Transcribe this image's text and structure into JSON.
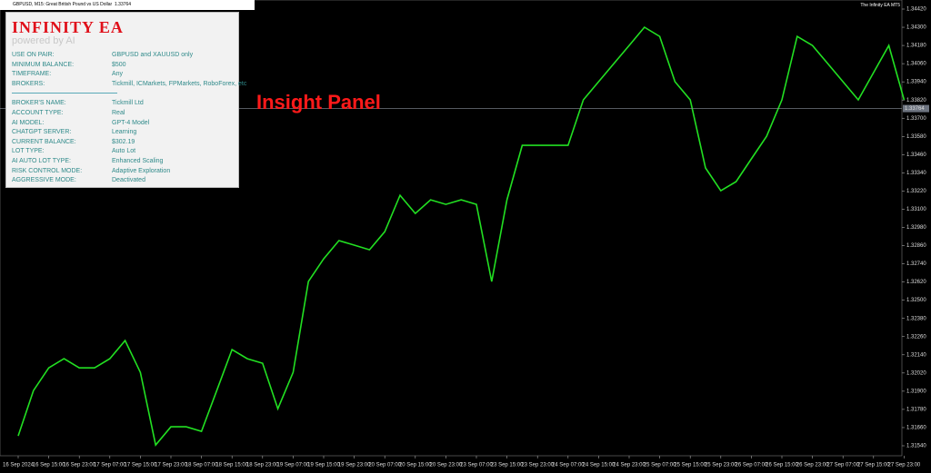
{
  "header": {
    "symbol": "GBPUSD, M15:  Great British Pound vs US Dollar",
    "ea_name": "The Infinity EA MT5"
  },
  "annotation": "Insight Panel",
  "panel": {
    "title": "INFINITY EA",
    "subtitle": "powered by AI",
    "rows": [
      [
        "USE ON PAIR:",
        "GBPUSD and XAUUSD only"
      ],
      [
        "MINIMUM BALANCE:",
        "$500"
      ],
      [
        "TIMEFRAME:",
        "Any"
      ],
      [
        "BROKERS:",
        "Tickmill, ICMarkets, FPMarkets, RoboForex, etc"
      ],
      [
        "BROKER'S NAME:",
        "Tickmill Ltd"
      ],
      [
        "ACCOUNT TYPE:",
        "Real"
      ],
      [
        "AI MODEL:",
        "GPT-4 Model"
      ],
      [
        "CHATGPT SERVER:",
        "Learning"
      ],
      [
        "CURRENT BALANCE:",
        "$302.19"
      ],
      [
        "LOT TYPE:",
        "Auto Lot"
      ],
      [
        "AI AUTO LOT TYPE:",
        "Enhanced Scaling"
      ],
      [
        "RISK CONTROL MODE:",
        "Adaptive Exploration"
      ],
      [
        "AGGRESSIVE MODE:",
        "Deactivated"
      ]
    ]
  },
  "chart_data": {
    "type": "line",
    "current_price": 1.33764,
    "categories": [
      "16 Sep 2024",
      null,
      "16 Sep 15:00",
      null,
      "16 Sep 23:00",
      null,
      "17 Sep 07:00",
      null,
      "17 Sep 15:00",
      null,
      "17 Sep 23:00",
      null,
      "18 Sep 07:00",
      null,
      "18 Sep 15:00",
      null,
      "18 Sep 23:00",
      null,
      "19 Sep 07:00",
      null,
      "19 Sep 15:00",
      null,
      "19 Sep 23:00",
      null,
      "20 Sep 07:00",
      null,
      "20 Sep 15:00",
      null,
      "20 Sep 23:00",
      null,
      "23 Sep 07:00",
      null,
      "23 Sep 15:00",
      null,
      "23 Sep 23:00",
      null,
      "24 Sep 07:00",
      null,
      "24 Sep 15:00",
      null,
      "24 Sep 23:00",
      null,
      "25 Sep 07:00",
      null,
      "25 Sep 15:00",
      null,
      "25 Sep 23:00",
      null,
      "26 Sep 07:00",
      null,
      "26 Sep 15:00",
      null,
      "26 Sep 23:00",
      null,
      "27 Sep 07:00",
      null,
      "27 Sep 15:00",
      null,
      "27 Sep 23:00"
    ],
    "series": [
      {
        "name": "GBPUSD",
        "color": "#22e022",
        "values": [
          1.31605,
          1.31904,
          1.32054,
          1.32114,
          1.32054,
          1.32054,
          1.32114,
          1.32234,
          1.32024,
          1.31545,
          1.31665,
          1.31665,
          1.31635,
          1.31904,
          1.32174,
          1.32114,
          1.32084,
          1.31784,
          1.32024,
          1.32623,
          1.32773,
          1.32893,
          1.32863,
          1.32833,
          1.32952,
          1.33192,
          1.33072,
          1.33162,
          1.33132,
          1.33162,
          1.33132,
          1.32623,
          1.33162,
          1.33521,
          1.33521,
          1.33521,
          1.33521,
          1.33821,
          1.33941,
          1.34061,
          1.3418,
          1.343,
          1.3424,
          1.33941,
          1.33821,
          1.33372,
          1.33222,
          1.33282,
          1.33432,
          1.33581,
          1.33821,
          1.3424,
          1.3418,
          1.34061,
          1.33941,
          1.33821,
          1.34001,
          1.3418,
          1.33821
        ]
      }
    ],
    "ylim": [
      1.3154,
      1.3442
    ],
    "yticks": [
      {
        "value": 1.3154,
        "label": "1.31540"
      },
      {
        "value": 1.3166,
        "label": "1.31660"
      },
      {
        "value": 1.3178,
        "label": "1.31780"
      },
      {
        "value": 1.319,
        "label": "1.31900"
      },
      {
        "value": 1.3202,
        "label": "1.32020"
      },
      {
        "value": 1.3214,
        "label": "1.32140"
      },
      {
        "value": 1.3226,
        "label": "1.32260"
      },
      {
        "value": 1.3238,
        "label": "1.32380"
      },
      {
        "value": 1.325,
        "label": "1.32500"
      },
      {
        "value": 1.3262,
        "label": "1.32620"
      },
      {
        "value": 1.3274,
        "label": "1.32740"
      },
      {
        "value": 1.3286,
        "label": "1.32860"
      },
      {
        "value": 1.3298,
        "label": "1.32980"
      },
      {
        "value": 1.331,
        "label": "1.33100"
      },
      {
        "value": 1.3322,
        "label": "1.33220"
      },
      {
        "value": 1.3334,
        "label": "1.33340"
      },
      {
        "value": 1.3346,
        "label": "1.33460"
      },
      {
        "value": 1.3358,
        "label": "1.33580"
      },
      {
        "value": 1.337,
        "label": "1.33700"
      },
      {
        "value": 1.3382,
        "label": "1.33820"
      },
      {
        "value": 1.3394,
        "label": "1.33940"
      },
      {
        "value": 1.3406,
        "label": "1.34060"
      },
      {
        "value": 1.3418,
        "label": "1.34180"
      },
      {
        "value": 1.343,
        "label": "1.34300"
      },
      {
        "value": 1.3442,
        "label": "1.34420"
      }
    ],
    "grid": false
  }
}
